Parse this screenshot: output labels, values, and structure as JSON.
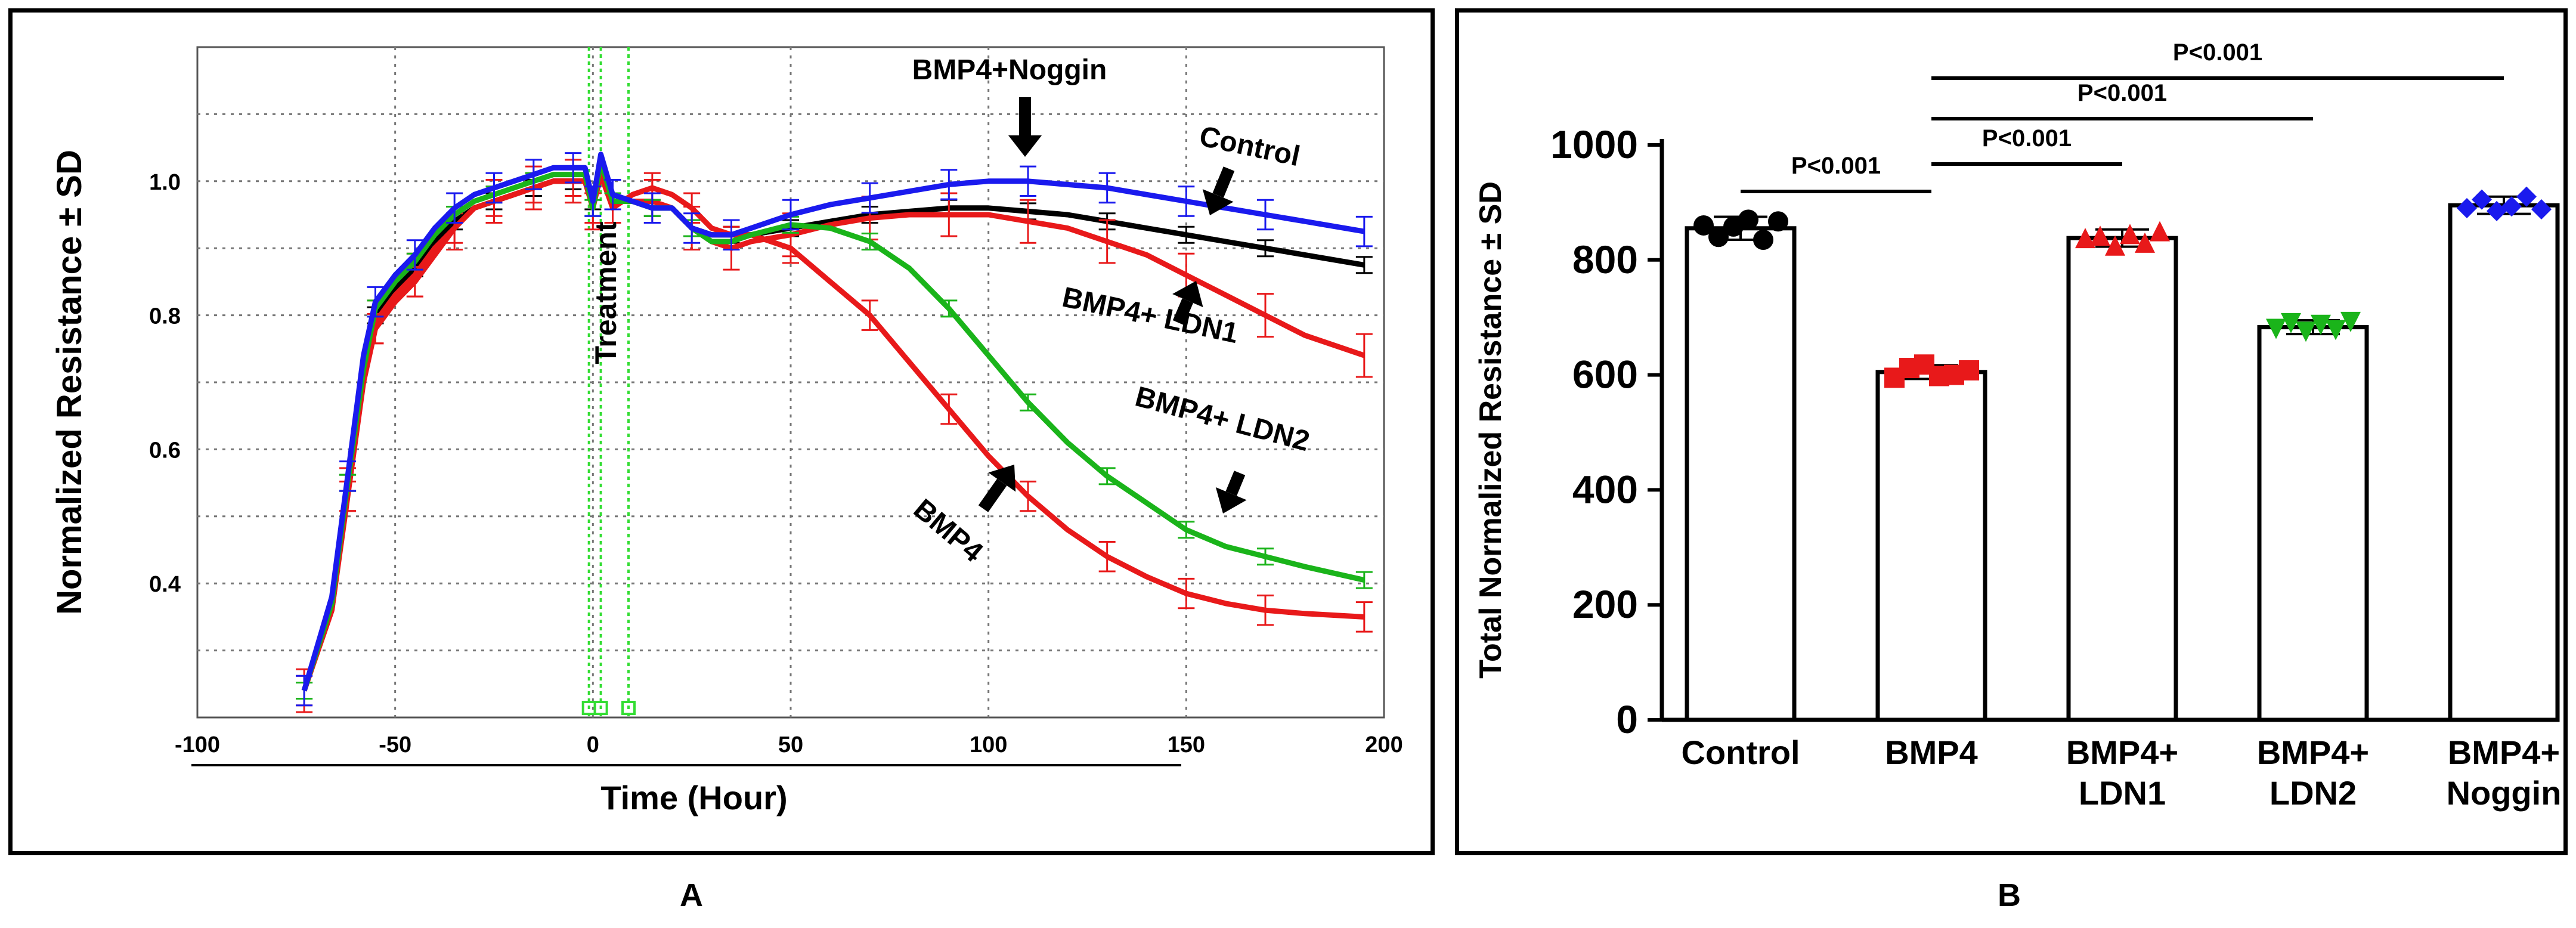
{
  "panel_labels": {
    "a": "A",
    "b": "B"
  },
  "colors": {
    "control": "#000000",
    "bmp4": "#e8191a",
    "ldn1": "#e8191a",
    "ldn2": "#1ab41a",
    "noggin": "#1a1aee",
    "treatment": "#33dd33"
  },
  "chart_data": [
    {
      "type": "line",
      "panel": "A",
      "xlabel": "Time (Hour)",
      "ylabel": "Normalized Resistance ± SD",
      "xlim": [
        -100,
        200
      ],
      "ylim": [
        0.2,
        1.2
      ],
      "x_ticks": [
        "-100",
        "-50",
        "0",
        "50",
        "100",
        "150",
        "200"
      ],
      "y_ticks": [
        "1.0",
        "0.8",
        "0.6",
        "0.4"
      ],
      "treatment_label": "Treatment",
      "treatment_markers": [
        -1,
        2,
        9
      ],
      "series": [
        {
          "name": "Control",
          "label": "Control",
          "color": "#000000",
          "x": [
            -73,
            -66,
            -62,
            -58,
            -55,
            -50,
            -45,
            -40,
            -35,
            -30,
            -25,
            -20,
            -15,
            -10,
            -5,
            -2,
            0,
            2,
            5,
            10,
            15,
            20,
            25,
            30,
            35,
            40,
            50,
            60,
            70,
            80,
            90,
            100,
            110,
            120,
            130,
            140,
            150,
            160,
            170,
            180,
            195
          ],
          "y": [
            0.24,
            0.37,
            0.55,
            0.72,
            0.8,
            0.84,
            0.87,
            0.91,
            0.94,
            0.96,
            0.97,
            0.98,
            0.99,
            1.0,
            1.0,
            1.0,
            0.97,
            1.03,
            0.97,
            0.97,
            0.96,
            0.96,
            0.93,
            0.92,
            0.92,
            0.92,
            0.93,
            0.94,
            0.95,
            0.955,
            0.96,
            0.96,
            0.955,
            0.95,
            0.94,
            0.93,
            0.92,
            0.91,
            0.9,
            0.89,
            0.875
          ]
        },
        {
          "name": "BMP4",
          "label": "BMP4",
          "color": "#e8191a",
          "x": [
            -73,
            -66,
            -62,
            -58,
            -55,
            -50,
            -45,
            -40,
            -35,
            -30,
            -25,
            -20,
            -15,
            -10,
            -5,
            -2,
            0,
            2,
            5,
            10,
            15,
            20,
            25,
            30,
            35,
            40,
            50,
            60,
            70,
            80,
            90,
            100,
            110,
            120,
            130,
            140,
            150,
            160,
            170,
            180,
            195
          ],
          "y": [
            0.24,
            0.36,
            0.53,
            0.7,
            0.78,
            0.82,
            0.85,
            0.89,
            0.93,
            0.96,
            0.97,
            0.98,
            0.99,
            1.0,
            1.0,
            1.0,
            0.96,
            1.01,
            0.96,
            0.98,
            0.99,
            0.98,
            0.96,
            0.93,
            0.92,
            0.92,
            0.9,
            0.85,
            0.8,
            0.73,
            0.66,
            0.59,
            0.53,
            0.48,
            0.44,
            0.41,
            0.385,
            0.37,
            0.36,
            0.355,
            0.35
          ]
        },
        {
          "name": "BMP4+ LDN1",
          "label": "BMP4+ LDN1",
          "color": "#e8191a",
          "x": [
            -73,
            -66,
            -62,
            -58,
            -55,
            -50,
            -45,
            -40,
            -35,
            -30,
            -25,
            -20,
            -15,
            -10,
            -5,
            -2,
            0,
            2,
            5,
            10,
            15,
            20,
            25,
            30,
            35,
            40,
            50,
            60,
            70,
            80,
            90,
            100,
            110,
            120,
            130,
            140,
            150,
            160,
            170,
            180,
            195
          ],
          "y": [
            0.24,
            0.36,
            0.54,
            0.71,
            0.79,
            0.83,
            0.86,
            0.9,
            0.93,
            0.96,
            0.97,
            0.98,
            0.99,
            1.0,
            1.0,
            1.0,
            0.96,
            1.02,
            0.97,
            0.97,
            0.97,
            0.96,
            0.93,
            0.91,
            0.9,
            0.91,
            0.92,
            0.935,
            0.945,
            0.95,
            0.95,
            0.95,
            0.94,
            0.93,
            0.91,
            0.89,
            0.86,
            0.83,
            0.8,
            0.77,
            0.74
          ]
        },
        {
          "name": "BMP4+ LDN2",
          "label": "BMP4+ LDN2",
          "color": "#1ab41a",
          "x": [
            -73,
            -66,
            -62,
            -58,
            -55,
            -50,
            -45,
            -40,
            -35,
            -30,
            -25,
            -20,
            -15,
            -10,
            -5,
            -2,
            0,
            2,
            5,
            10,
            15,
            20,
            25,
            30,
            35,
            40,
            50,
            60,
            70,
            80,
            90,
            100,
            110,
            120,
            130,
            140,
            150,
            160,
            170,
            180,
            195
          ],
          "y": [
            0.24,
            0.37,
            0.55,
            0.72,
            0.81,
            0.85,
            0.88,
            0.92,
            0.95,
            0.97,
            0.98,
            0.99,
            1.0,
            1.01,
            1.01,
            1.01,
            0.96,
            1.03,
            0.97,
            0.97,
            0.96,
            0.96,
            0.93,
            0.91,
            0.91,
            0.92,
            0.935,
            0.93,
            0.91,
            0.87,
            0.81,
            0.74,
            0.67,
            0.61,
            0.56,
            0.52,
            0.48,
            0.455,
            0.44,
            0.425,
            0.405
          ]
        },
        {
          "name": "BMP4+Noggin",
          "label": "BMP4+Noggin",
          "color": "#1a1aee",
          "x": [
            -73,
            -66,
            -62,
            -58,
            -55,
            -50,
            -45,
            -40,
            -35,
            -30,
            -25,
            -20,
            -15,
            -10,
            -5,
            -2,
            0,
            2,
            5,
            10,
            15,
            20,
            25,
            30,
            35,
            40,
            50,
            60,
            70,
            80,
            90,
            100,
            110,
            120,
            130,
            140,
            150,
            160,
            170,
            180,
            195
          ],
          "y": [
            0.24,
            0.38,
            0.56,
            0.74,
            0.82,
            0.86,
            0.89,
            0.93,
            0.96,
            0.98,
            0.99,
            1.0,
            1.01,
            1.02,
            1.02,
            1.02,
            0.97,
            1.04,
            0.98,
            0.97,
            0.96,
            0.96,
            0.93,
            0.92,
            0.92,
            0.93,
            0.95,
            0.965,
            0.975,
            0.985,
            0.995,
            1.0,
            1.0,
            0.995,
            0.99,
            0.98,
            0.97,
            0.96,
            0.95,
            0.94,
            0.925
          ]
        }
      ]
    },
    {
      "type": "bar",
      "panel": "B",
      "ylabel": "Total Normalized Resistance ± SD",
      "ylim": [
        0,
        1000
      ],
      "y_ticks": [
        "0",
        "200",
        "400",
        "600",
        "800",
        "1000"
      ],
      "categories": [
        {
          "line1": "Control",
          "line2": ""
        },
        {
          "line1": "BMP4",
          "line2": ""
        },
        {
          "line1": "BMP4+",
          "line2": "LDN1"
        },
        {
          "line1": "BMP4+",
          "line2": "LDN2"
        },
        {
          "line1": "BMP4+",
          "line2": "Noggin"
        }
      ],
      "values": [
        855,
        605,
        838,
        683,
        895
      ],
      "errors": [
        20,
        12,
        15,
        12,
        15
      ],
      "point_colors": [
        "#000000",
        "#e8191a",
        "#e8191a",
        "#1ab41a",
        "#1a1aee"
      ],
      "point_shapes": [
        "circle",
        "square",
        "triangle-up",
        "triangle-down",
        "diamond"
      ],
      "points": [
        [
          860,
          840,
          858,
          870,
          835,
          867
        ],
        [
          595,
          612,
          618,
          598,
          600,
          608
        ],
        [
          838,
          842,
          825,
          845,
          830,
          850
        ],
        [
          680,
          690,
          675,
          687,
          678,
          692
        ],
        [
          890,
          905,
          885,
          893,
          910,
          888
        ]
      ],
      "significance": [
        {
          "from": 0,
          "to": 1,
          "text": "P<0.001"
        },
        {
          "from": 1,
          "to": 2,
          "text": "P<0.001"
        },
        {
          "from": 1,
          "to": 3,
          "text": "P<0.001"
        },
        {
          "from": 1,
          "to": 4,
          "text": "P<0.001"
        }
      ]
    }
  ]
}
